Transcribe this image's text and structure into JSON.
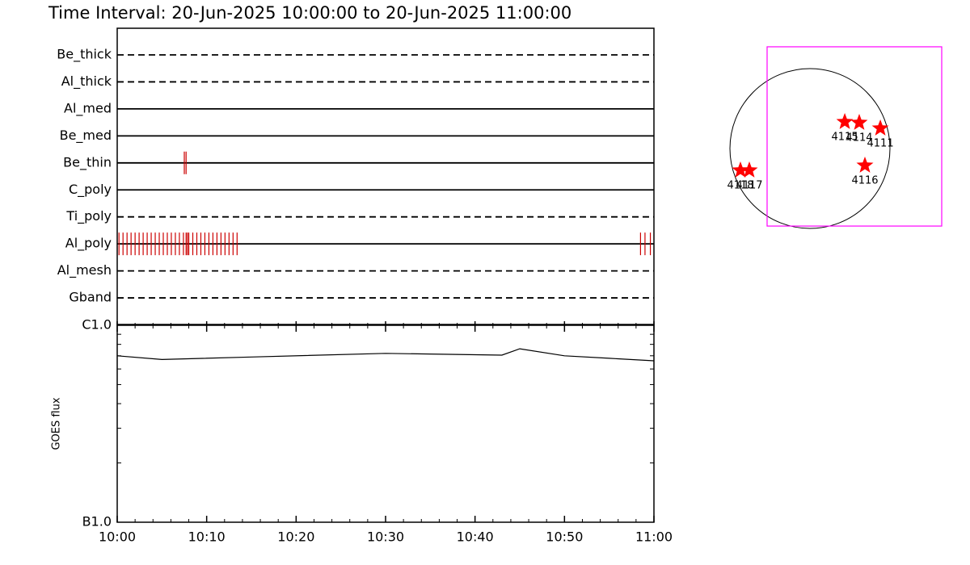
{
  "title": "Time Interval: 20-Jun-2025 10:00:00 to 20-Jun-2025 11:00:00",
  "chart_data": [
    {
      "type": "timeline",
      "categories": [
        "Be_thick",
        "Al_thick",
        "Al_med",
        "Be_med",
        "Be_thin",
        "C_poly",
        "Ti_poly",
        "Al_poly",
        "Al_mesh",
        "Gband"
      ],
      "line_styles": [
        "dashed",
        "dashed",
        "solid",
        "solid",
        "solid",
        "solid",
        "dashed",
        "solid",
        "dashed",
        "dashed"
      ],
      "events": [
        [],
        [],
        [],
        [],
        [
          7.5,
          7.7
        ],
        [],
        [],
        [
          0.2,
          0.65,
          1.1,
          1.55,
          2.0,
          2.45,
          2.9,
          3.35,
          3.8,
          4.25,
          4.7,
          5.15,
          5.6,
          6.05,
          6.5,
          6.95,
          7.4,
          7.7,
          7.85,
          8.0,
          8.45,
          8.9,
          9.35,
          9.8,
          10.25,
          10.7,
          11.15,
          11.6,
          12.05,
          12.5,
          12.95,
          13.4,
          58.5,
          59.0,
          59.6
        ],
        [],
        []
      ],
      "color": "#cc0000",
      "xlim": [
        0,
        60
      ]
    },
    {
      "type": "line",
      "ylabel": "GOES flux",
      "x": [
        0,
        5,
        15,
        30,
        43,
        45,
        50,
        55,
        60
      ],
      "values": [
        7e-07,
        6.7e-07,
        6.9e-07,
        7.2e-07,
        7.05e-07,
        7.6e-07,
        7e-07,
        6.8e-07,
        6.6e-07
      ],
      "color": "#000000",
      "xlim": [
        0,
        60
      ],
      "xticks": [
        {
          "value": 0,
          "label": "10:00"
        },
        {
          "value": 10,
          "label": "10:10"
        },
        {
          "value": 20,
          "label": "10:20"
        },
        {
          "value": 30,
          "label": "10:30"
        },
        {
          "value": 40,
          "label": "10:40"
        },
        {
          "value": 50,
          "label": "10:50"
        },
        {
          "value": 60,
          "label": "11:00"
        }
      ],
      "minor_xticks": [
        2,
        4,
        6,
        8,
        12,
        14,
        16,
        18,
        22,
        24,
        26,
        28,
        32,
        34,
        36,
        38,
        42,
        44,
        46,
        48,
        52,
        54,
        56,
        58
      ],
      "log_y": true,
      "ylim": [
        1e-07,
        1e-06
      ],
      "yticks": [
        {
          "value": 1e-07,
          "label": "B1.0"
        },
        {
          "value": 1e-06,
          "label": "C1.0"
        }
      ],
      "minor_yticks": [
        2e-07,
        3e-07,
        4e-07,
        5e-07,
        6e-07,
        7e-07,
        8e-07,
        9e-07
      ]
    },
    {
      "type": "map",
      "solar_radius": 945,
      "fov": {
        "xlim": [
          -506,
          1556
        ],
        "ylim": [
          -917,
          1203
        ]
      },
      "fov_color": "#ff00ff",
      "marker_color": "#ff0000",
      "points": [
        {
          "label": "4115",
          "x": 411,
          "y": 315
        },
        {
          "label": "4114",
          "x": 582,
          "y": 305
        },
        {
          "label": "4111",
          "x": 831,
          "y": 239
        },
        {
          "label": "4116",
          "x": 649,
          "y": -200
        },
        {
          "label": "4118",
          "x": -821,
          "y": -258
        },
        {
          "label": "4117",
          "x": -716,
          "y": -258
        }
      ]
    }
  ]
}
